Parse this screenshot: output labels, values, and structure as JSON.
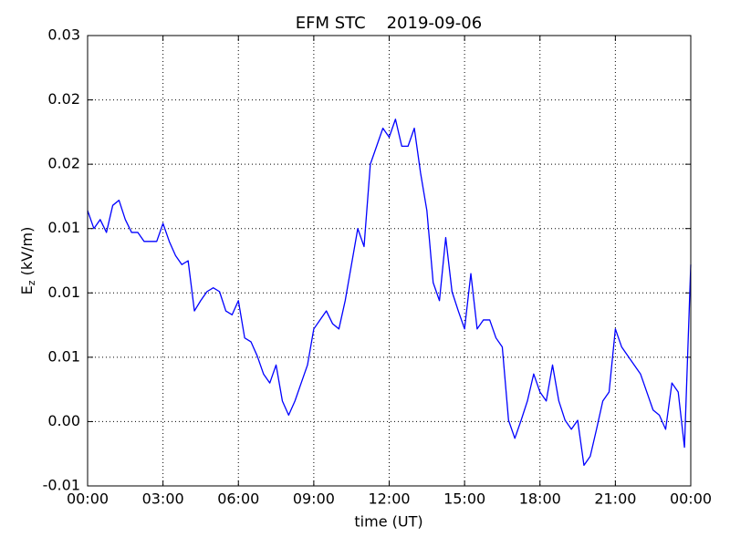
{
  "chart_data": {
    "type": "line",
    "title": "EFM STC    2019-09-06",
    "xlabel": "time (UT)",
    "ylabel": [
      "E",
      "z",
      " (kV/m)"
    ],
    "color": "#0000ff",
    "grid": true,
    "xlim": [
      0,
      24
    ],
    "xticks": [
      {
        "value": 0,
        "label": "00:00"
      },
      {
        "value": 3,
        "label": "03:00"
      },
      {
        "value": 6,
        "label": "06:00"
      },
      {
        "value": 9,
        "label": "09:00"
      },
      {
        "value": 12,
        "label": "12:00"
      },
      {
        "value": 15,
        "label": "15:00"
      },
      {
        "value": 18,
        "label": "18:00"
      },
      {
        "value": 21,
        "label": "21:00"
      },
      {
        "value": 24,
        "label": "00:00"
      }
    ],
    "ylim": [
      -0.005,
      0.03
    ],
    "yticks": [
      {
        "value": -0.005,
        "label": "-0.01"
      },
      {
        "value": 0,
        "label": "0.00"
      },
      {
        "value": 0.005,
        "label": "0.01"
      },
      {
        "value": 0.01,
        "label": "0.01"
      },
      {
        "value": 0.015,
        "label": "0.01"
      },
      {
        "value": 0.02,
        "label": "0.02"
      },
      {
        "value": 0.025,
        "label": "0.02"
      },
      {
        "value": 0.03,
        "label": "0.03"
      }
    ],
    "x": [
      0,
      0.25,
      0.5,
      0.75,
      1,
      1.25,
      1.5,
      1.75,
      2,
      2.25,
      2.5,
      2.75,
      3,
      3.25,
      3.5,
      3.75,
      4,
      4.25,
      4.5,
      4.75,
      5,
      5.25,
      5.5,
      5.75,
      6,
      6.25,
      6.5,
      6.75,
      7,
      7.25,
      7.5,
      7.75,
      8,
      8.25,
      8.5,
      8.75,
      9,
      9.25,
      9.5,
      9.75,
      10,
      10.25,
      10.5,
      10.75,
      11,
      11.25,
      11.5,
      11.75,
      12,
      12.25,
      12.5,
      12.75,
      13,
      13.25,
      13.5,
      13.75,
      14,
      14.25,
      14.5,
      14.75,
      15,
      15.25,
      15.5,
      15.75,
      16,
      16.25,
      16.5,
      16.75,
      17,
      17.25,
      17.5,
      17.75,
      18,
      18.25,
      18.5,
      18.75,
      19,
      19.25,
      19.5,
      19.75,
      20,
      20.25,
      20.5,
      20.75,
      21,
      21.25,
      21.5,
      21.75,
      22,
      22.25,
      22.5,
      22.75,
      23,
      23.25,
      23.5,
      23.75,
      24
    ],
    "values": [
      0.0164,
      0.015,
      0.0157,
      0.0147,
      0.0168,
      0.0172,
      0.0157,
      0.0147,
      0.0147,
      0.014,
      0.014,
      0.014,
      0.0154,
      0.014,
      0.0129,
      0.0122,
      0.0125,
      0.0086,
      0.0094,
      0.0101,
      0.0104,
      0.0101,
      0.0086,
      0.0083,
      0.0094,
      0.0065,
      0.0062,
      0.0051,
      0.0037,
      0.003,
      0.0044,
      0.0016,
      0.0005,
      0.0016,
      0.003,
      0.0044,
      0.0072,
      0.0079,
      0.0086,
      0.0076,
      0.0072,
      0.0094,
      0.0122,
      0.015,
      0.0136,
      0.02,
      0.0214,
      0.0228,
      0.0221,
      0.0235,
      0.0214,
      0.0214,
      0.0228,
      0.0193,
      0.0164,
      0.0108,
      0.0094,
      0.0143,
      0.0101,
      0.0086,
      0.0072,
      0.0115,
      0.0072,
      0.0079,
      0.0079,
      0.0065,
      0.0058,
      0.0001,
      -0.0013,
      0.0001,
      0.0016,
      0.0037,
      0.0023,
      0.0016,
      0.0044,
      0.0016,
      0.0001,
      -0.0006,
      0.0001,
      -0.0034,
      -0.0027,
      -0.0006,
      0.0016,
      0.0023,
      0.0072,
      0.0058,
      0.0051,
      0.0044,
      0.0037,
      0.0023,
      0.0009,
      0.0005,
      -0.0006,
      0.003,
      0.0023,
      -0.002,
      0.0122
    ]
  }
}
